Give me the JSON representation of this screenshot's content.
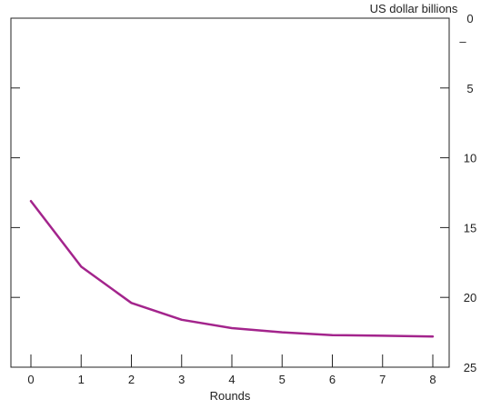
{
  "chart_data": {
    "type": "line",
    "title": "",
    "xlabel": "Rounds",
    "ylabel": "US dollar billions",
    "y_axis_side": "right",
    "y_axis_inverted": true,
    "ylim": [
      0,
      25
    ],
    "xlim": [
      0,
      8
    ],
    "x_ticks": [
      0,
      1,
      2,
      3,
      4,
      5,
      6,
      7,
      8
    ],
    "y_ticks": [
      0,
      5,
      10,
      15,
      20,
      25
    ],
    "y_tick_labels": [
      "0",
      "5",
      "10",
      "15",
      "20",
      "25"
    ],
    "y_annotation": "–",
    "grid": false,
    "series": [
      {
        "color": "#a3248c",
        "x": [
          0,
          1,
          2,
          3,
          4,
          5,
          6,
          7,
          8
        ],
        "values": [
          13.1,
          17.8,
          20.4,
          21.6,
          22.2,
          22.5,
          22.7,
          22.75,
          22.8
        ]
      }
    ]
  }
}
